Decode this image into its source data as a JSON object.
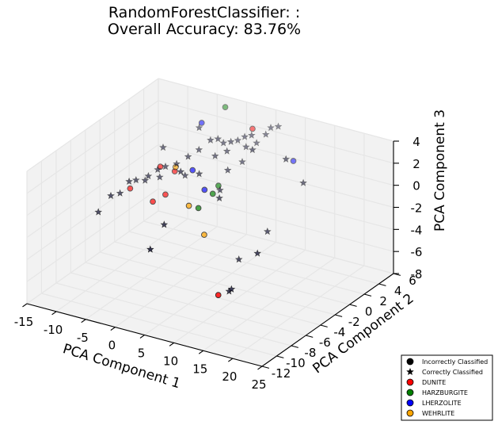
{
  "chart_data": {
    "type": "scatter",
    "projection": "3d",
    "title_line1": "RandomForestClassifier: :",
    "title_line2": "Overall Accuracy: 83.76%",
    "xlabel": "PCA Component 1",
    "ylabel": "PCA Component 2",
    "zlabel": "PCA Component 3",
    "xlim": [
      -15,
      25
    ],
    "ylim": [
      -12,
      6
    ],
    "zlim": [
      -8,
      4
    ],
    "x_ticks": [
      "-15",
      "-10",
      "-5",
      "0",
      "5",
      "10",
      "15",
      "20",
      "25"
    ],
    "y_ticks": [
      "-12",
      "-10",
      "-8",
      "-6",
      "-4",
      "-2",
      "0",
      "2",
      "4",
      "6"
    ],
    "z_ticks": [
      "-8",
      "-6",
      "-4",
      "-2",
      "0",
      "2",
      "4"
    ],
    "grid": true,
    "legend_position": "bottom-right",
    "legend": [
      {
        "label": "Incorrectly Classified",
        "marker": "circle",
        "color": "#000000"
      },
      {
        "label": "Correctly Classified",
        "marker": "star",
        "color": "#000000"
      },
      {
        "label": "DUNITE",
        "marker": "circle",
        "color": "#ff0000"
      },
      {
        "label": "HARZBURGITE",
        "marker": "circle",
        "color": "#008000"
      },
      {
        "label": "LHERZOLITE",
        "marker": "circle",
        "color": "#0000ff"
      },
      {
        "label": "WEHRLITE",
        "marker": "circle",
        "color": "#ffa500"
      }
    ],
    "series": [
      {
        "name": "DUNITE",
        "color": "#ff0000",
        "points": [
          {
            "x": -11.6,
            "y": -0.6,
            "z": -2.4,
            "correct": false
          },
          {
            "x": -8.2,
            "y": 0.8,
            "z": -0.6,
            "correct": false
          },
          {
            "x": -5.6,
            "y": -0.6,
            "z": -2.1,
            "correct": false
          },
          {
            "x": -6.5,
            "y": -1.6,
            "z": -2.4,
            "correct": false
          },
          {
            "x": -6.0,
            "y": 1.0,
            "z": -0.8,
            "correct": false
          },
          {
            "x": 3.5,
            "y": 4.0,
            "z": 3.0,
            "correct": false
          },
          {
            "x": 10.6,
            "y": -6.4,
            "z": -6.2,
            "correct": false
          }
        ]
      },
      {
        "name": "HARZBURGITE",
        "color": "#008000",
        "points": [
          {
            "x": -2.5,
            "y": 5.1,
            "z": 3.6,
            "correct": false
          },
          {
            "x": 2.0,
            "y": -2.2,
            "z": -1.5,
            "correct": false
          },
          {
            "x": 2.3,
            "y": 0.3,
            "z": -0.6,
            "correct": false
          },
          {
            "x": 3.2,
            "y": -1.2,
            "z": -0.5,
            "correct": false
          }
        ]
      },
      {
        "name": "LHERZOLITE",
        "color": "#0000ff",
        "points": [
          {
            "x": -4.4,
            "y": 3.4,
            "z": 2.7,
            "correct": false
          },
          {
            "x": -1.1,
            "y": -0.5,
            "z": 0.7,
            "correct": false
          },
          {
            "x": 1.3,
            "y": -0.8,
            "z": -0.6,
            "correct": false
          },
          {
            "x": 10.7,
            "y": 3.8,
            "z": 1.2,
            "correct": false
          }
        ]
      },
      {
        "name": "WEHRLITE",
        "color": "#ffa500",
        "points": [
          {
            "x": -5.1,
            "y": 0.4,
            "z": 0.0,
            "correct": false
          },
          {
            "x": 1.0,
            "y": -2.7,
            "z": -1.2,
            "correct": false
          },
          {
            "x": 4.1,
            "y": -3.1,
            "z": -3.2,
            "correct": false
          }
        ]
      },
      {
        "name": "Correctly Classified",
        "color": "#000000",
        "points": [
          {
            "x": -13.9,
            "y": -3.1,
            "z": -3.7,
            "correct": true
          },
          {
            "x": -12.9,
            "y": -2.2,
            "z": -2.5,
            "correct": true
          },
          {
            "x": -12.2,
            "y": -1.5,
            "z": -2.5,
            "correct": true
          },
          {
            "x": -11.4,
            "y": -0.9,
            "z": -1.6,
            "correct": true
          },
          {
            "x": -10.6,
            "y": -0.6,
            "z": -1.5,
            "correct": true
          },
          {
            "x": -9.8,
            "y": 0.0,
            "z": -1.7,
            "correct": true
          },
          {
            "x": -9.0,
            "y": -0.2,
            "z": -1.1,
            "correct": true
          },
          {
            "x": -8.4,
            "y": 0.6,
            "z": -0.8,
            "correct": true
          },
          {
            "x": -7.8,
            "y": 0.4,
            "z": -1.3,
            "correct": true
          },
          {
            "x": -7.2,
            "y": 0.7,
            "z": -0.4,
            "correct": true
          },
          {
            "x": -6.3,
            "y": 1.5,
            "z": -0.4,
            "correct": true
          },
          {
            "x": -4.6,
            "y": 1.7,
            "z": 0.4,
            "correct": true
          },
          {
            "x": -3.5,
            "y": 2.3,
            "z": 0.9,
            "correct": true
          },
          {
            "x": -2.4,
            "y": 3.0,
            "z": 1.6,
            "correct": true
          },
          {
            "x": -1.5,
            "y": 3.3,
            "z": 1.7,
            "correct": true
          },
          {
            "x": -0.7,
            "y": 3.4,
            "z": 1.4,
            "correct": true
          },
          {
            "x": 0.2,
            "y": 3.7,
            "z": 1.5,
            "correct": true
          },
          {
            "x": 1.0,
            "y": 4.0,
            "z": 1.6,
            "correct": true
          },
          {
            "x": 1.8,
            "y": 4.3,
            "z": 1.9,
            "correct": true
          },
          {
            "x": 2.6,
            "y": 4.6,
            "z": 2.0,
            "correct": true
          },
          {
            "x": 3.2,
            "y": 4.8,
            "z": 1.3,
            "correct": true
          },
          {
            "x": 4.4,
            "y": 5.1,
            "z": 2.1,
            "correct": true
          },
          {
            "x": 5.0,
            "y": 5.3,
            "z": 2.7,
            "correct": true
          },
          {
            "x": 5.9,
            "y": 5.6,
            "z": 2.8,
            "correct": true
          },
          {
            "x": 0.4,
            "y": 3.0,
            "z": 1.0,
            "correct": true
          },
          {
            "x": -1.0,
            "y": 2.5,
            "z": 0.6,
            "correct": true
          },
          {
            "x": 2.4,
            "y": 4.0,
            "z": 1.2,
            "correct": true
          },
          {
            "x": 1.9,
            "y": 1.9,
            "z": 0.0,
            "correct": true
          },
          {
            "x": 3.0,
            "y": 3.0,
            "z": 0.4,
            "correct": true
          },
          {
            "x": 4.2,
            "y": -1.1,
            "z": -0.8,
            "correct": true
          },
          {
            "x": -0.6,
            "y": 0.0,
            "z": 0.2,
            "correct": true
          },
          {
            "x": -9.1,
            "y": 1.9,
            "z": 0.5,
            "correct": true
          },
          {
            "x": -2.5,
            "y": -1.0,
            "z": 0.6,
            "correct": true
          },
          {
            "x": 2.7,
            "y": 0.2,
            "z": -0.9,
            "correct": true
          },
          {
            "x": 11.8,
            "y": 1.9,
            "z": 2.4,
            "correct": true
          },
          {
            "x": 15.0,
            "y": 1.7,
            "z": 0.8,
            "correct": true
          },
          {
            "x": 12.5,
            "y": -1.2,
            "z": -2.6,
            "correct": true
          },
          {
            "x": 14.9,
            "y": -4.5,
            "z": -2.7,
            "correct": true
          },
          {
            "x": 6.6,
            "y": 1.5,
            "z": 2.7,
            "correct": true
          },
          {
            "x": -0.1,
            "y": -5.2,
            "z": -1.9,
            "correct": true
          },
          {
            "x": 0.4,
            "y": -7.5,
            "z": -3.0,
            "correct": true
          },
          {
            "x": 10.7,
            "y": -5.0,
            "z": -6.5,
            "correct": true
          },
          {
            "x": 11.6,
            "y": -5.4,
            "z": -6.0,
            "correct": true
          },
          {
            "x": 10.0,
            "y": -3.1,
            "z": -4.6,
            "correct": true
          },
          {
            "x": -4.0,
            "y": 0.8,
            "z": -0.8,
            "correct": true
          },
          {
            "x": -5.2,
            "y": 3.7,
            "z": 2.0,
            "correct": true
          }
        ]
      }
    ]
  }
}
